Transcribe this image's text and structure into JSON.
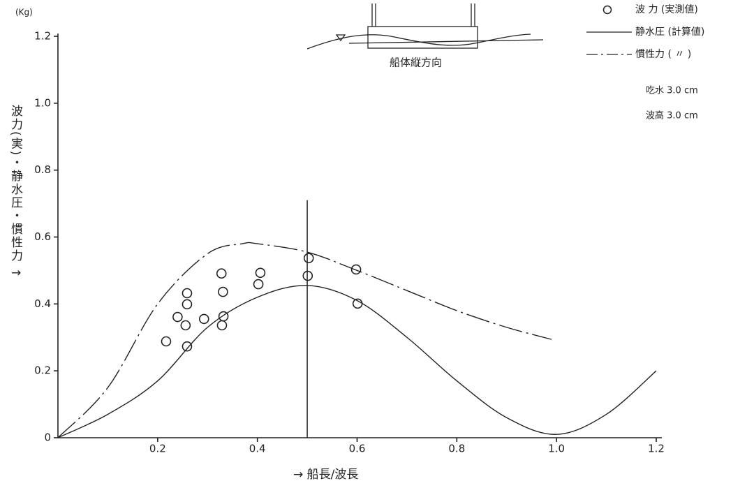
{
  "chart_data": {
    "type": "scatter-lines",
    "y_unit": "(Kg)",
    "ylabel": "波力(実)・静水圧・慣性力 ↑",
    "xlabel": "→ 船長/波長",
    "xlim": [
      0,
      1.2
    ],
    "ylim": [
      0,
      1.2
    ],
    "xticks": [
      0.2,
      0.4,
      0.6,
      0.8,
      {
        "value": 1,
        "label": "1.0"
      },
      1.2
    ],
    "yticks": [
      0,
      0.2,
      0.4,
      0.6,
      0.8,
      {
        "value": 1,
        "label": "1.0"
      },
      1.2
    ],
    "series": [
      {
        "name": "波 力 (実測値)",
        "kind": "scatter",
        "color": "#222",
        "x": [
          0.217,
          0.24,
          0.259,
          0.259,
          0.256,
          0.259,
          0.293,
          0.328,
          0.331,
          0.332,
          0.329,
          0.406,
          0.402,
          0.503,
          0.501,
          0.598,
          0.601
        ],
        "values": [
          0.288,
          0.361,
          0.432,
          0.399,
          0.336,
          0.273,
          0.355,
          0.491,
          0.436,
          0.363,
          0.336,
          0.493,
          0.459,
          0.537,
          0.484,
          0.503,
          0.401
        ]
      },
      {
        "name": "静水圧 (計算値)",
        "kind": "line",
        "dash": "solid",
        "color": "#222",
        "x": [
          0,
          0.1,
          0.2,
          0.3,
          0.4,
          0.5,
          0.6,
          0.7,
          0.8,
          0.9,
          1.0,
          1.1,
          1.2
        ],
        "values": [
          0,
          0.07,
          0.17,
          0.33,
          0.42,
          0.455,
          0.41,
          0.3,
          0.17,
          0.06,
          0.01,
          0.07,
          0.2
        ]
      },
      {
        "name": "慣性力 ( 〃 )",
        "kind": "line",
        "dash": "dashdot",
        "color": "#222",
        "x": [
          0,
          0.1,
          0.2,
          0.3,
          0.37,
          0.4,
          0.5,
          0.6,
          0.7,
          0.8,
          0.9,
          0.99
        ],
        "values": [
          0,
          0.15,
          0.4,
          0.55,
          0.58,
          0.58,
          0.555,
          0.5,
          0.44,
          0.38,
          0.33,
          0.294
        ]
      }
    ],
    "vline": {
      "x": 0.5,
      "ymax": 0.71
    },
    "notes": [
      "吃水 3.0 cm",
      "波高 3.0 cm"
    ],
    "diagram_label": "船体縦方向"
  }
}
